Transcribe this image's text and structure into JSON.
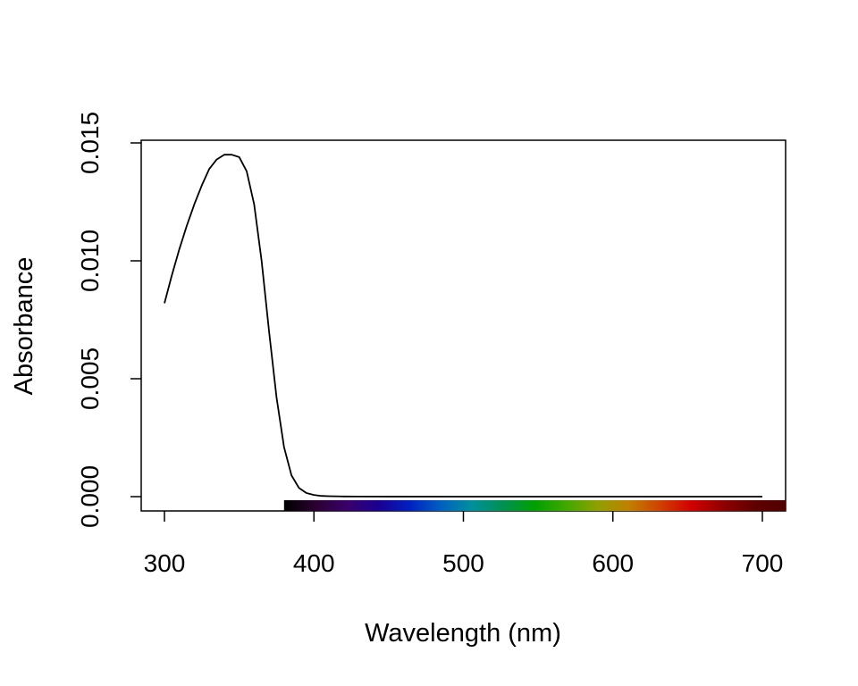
{
  "chart_data": {
    "type": "line",
    "xlabel": "Wavelength (nm)",
    "ylabel": "Absorbance",
    "xlim": [
      300,
      700
    ],
    "ylim": [
      0,
      0.015
    ],
    "xticks": [
      300,
      400,
      500,
      600,
      700
    ],
    "xtick_labels": [
      "300",
      "400",
      "500",
      "600",
      "700"
    ],
    "yticks": [
      0,
      0.005,
      0.01,
      0.015
    ],
    "ytick_labels": [
      "0.000",
      "0.005",
      "0.010",
      "0.015"
    ],
    "grid": false,
    "series": [
      {
        "x": [
          300,
          305,
          310,
          315,
          320,
          325,
          330,
          335,
          340,
          345,
          350,
          355,
          360,
          365,
          370,
          375,
          380,
          385,
          390,
          395,
          400,
          405,
          410,
          420,
          430,
          450,
          500,
          550,
          600,
          650,
          700
        ],
        "y": [
          0.0082,
          0.0094,
          0.0105,
          0.0115,
          0.0124,
          0.0132,
          0.0139,
          0.0143,
          0.0145,
          0.0145,
          0.0144,
          0.0138,
          0.0124,
          0.01,
          0.007,
          0.0042,
          0.0021,
          0.0009,
          0.00037,
          0.00015,
          7e-05,
          3e-05,
          2e-05,
          8e-06,
          5e-06,
          3e-06,
          1e-06,
          5e-07,
          2e-07,
          1e-07,
          0.0
        ]
      }
    ],
    "spectrum_bar": {
      "range": [
        380,
        716
      ],
      "colors": [
        "#000000",
        "#2a0030",
        "#3a006a",
        "#1a0090",
        "#0020c0",
        "#0060c0",
        "#00909a",
        "#009050",
        "#00a000",
        "#40a800",
        "#90a000",
        "#c08000",
        "#d04000",
        "#d00000",
        "#900000",
        "#600000",
        "#500000"
      ]
    }
  }
}
